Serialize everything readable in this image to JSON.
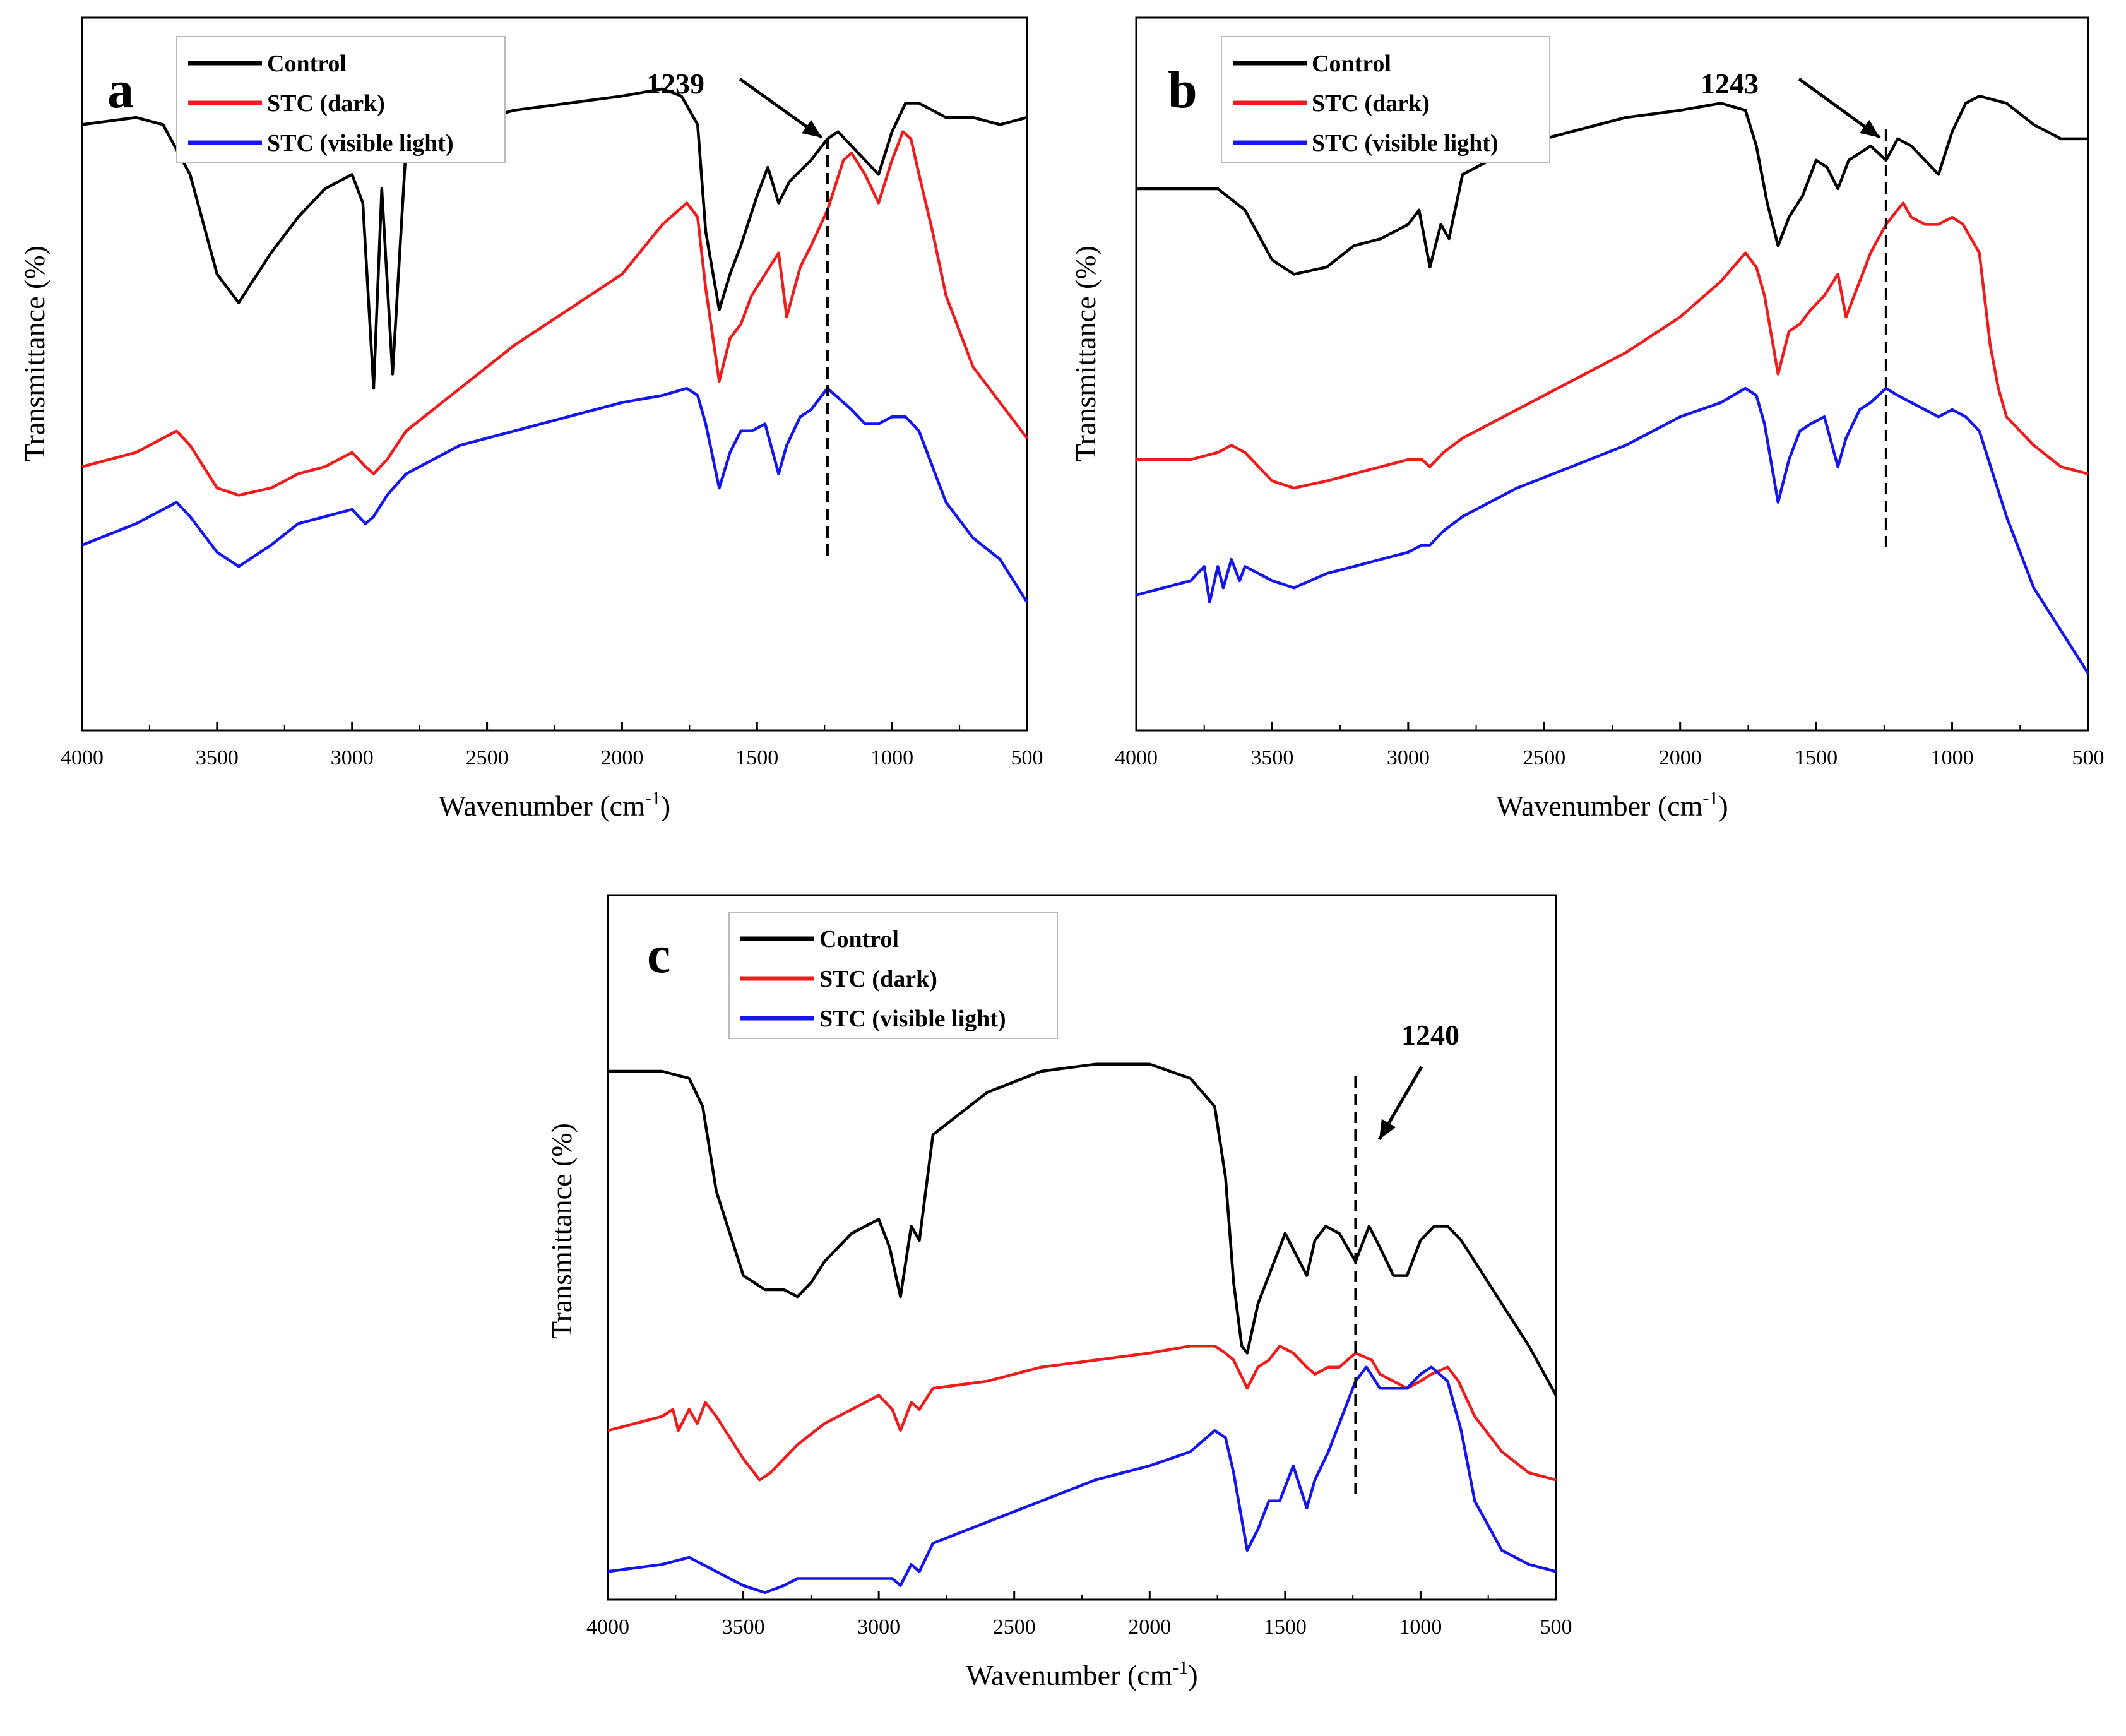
{
  "chart_data": [
    {
      "type": "line",
      "panel_label": "a",
      "xlabel": "Wavenumber (cm",
      "xlabel_sup": "-1",
      "xlabel_close": ")",
      "ylabel": "Transmittance (%)",
      "xlim": [
        4000,
        500
      ],
      "x_reversed": true,
      "yticks_shown": false,
      "x_ticks": [
        4000,
        3500,
        3000,
        2500,
        2000,
        1500,
        1000,
        500
      ],
      "legend": [
        "Control",
        "STC (dark)",
        "STC (visible light)"
      ],
      "legend_position": "top-left",
      "series_colors": [
        "#000000",
        "#ee1c1c",
        "#1515ee"
      ],
      "annotation": {
        "text": "1239",
        "x": 1239
      },
      "series": [
        {
          "name": "Control",
          "x": [
            4000,
            3800,
            3700,
            3600,
            3500,
            3420,
            3300,
            3200,
            3100,
            3000,
            2960,
            2920,
            2890,
            2850,
            2800,
            2600,
            2400,
            2200,
            2000,
            1850,
            1780,
            1720,
            1690,
            1640,
            1600,
            1560,
            1500,
            1460,
            1420,
            1380,
            1300,
            1239,
            1200,
            1150,
            1100,
            1050,
            1000,
            950,
            900,
            800,
            700,
            600,
            500
          ],
          "y": [
            85,
            86,
            85,
            78,
            64,
            60,
            67,
            72,
            76,
            78,
            74,
            48,
            76,
            50,
            82,
            85,
            87,
            88,
            89,
            90,
            89,
            85,
            70,
            59,
            64,
            68,
            75,
            79,
            74,
            77,
            80,
            83,
            84,
            82,
            80,
            78,
            84,
            88,
            88,
            86,
            86,
            85,
            86
          ]
        },
        {
          "name": "STC (dark)",
          "x": [
            4000,
            3800,
            3700,
            3650,
            3600,
            3500,
            3420,
            3300,
            3200,
            3100,
            3000,
            2950,
            2920,
            2870,
            2800,
            2600,
            2400,
            2200,
            2000,
            1850,
            1760,
            1720,
            1690,
            1640,
            1600,
            1560,
            1520,
            1470,
            1420,
            1390,
            1340,
            1300,
            1239,
            1180,
            1150,
            1100,
            1050,
            1000,
            960,
            930,
            900,
            850,
            800,
            700,
            600,
            500
          ],
          "y": [
            37,
            39,
            41,
            42,
            40,
            34,
            33,
            34,
            36,
            37,
            39,
            37,
            36,
            38,
            42,
            48,
            54,
            59,
            64,
            71,
            74,
            72,
            62,
            49,
            55,
            57,
            61,
            64,
            67,
            58,
            65,
            68,
            73,
            80,
            81,
            78,
            74,
            80,
            84,
            83,
            78,
            70,
            61,
            51,
            46,
            41
          ]
        },
        {
          "name": "STC (visible light)",
          "x": [
            4000,
            3800,
            3700,
            3650,
            3600,
            3500,
            3420,
            3300,
            3200,
            3100,
            3000,
            2950,
            2920,
            2870,
            2800,
            2600,
            2400,
            2200,
            2000,
            1850,
            1760,
            1720,
            1690,
            1640,
            1600,
            1560,
            1520,
            1470,
            1420,
            1390,
            1340,
            1300,
            1239,
            1150,
            1100,
            1050,
            1000,
            950,
            900,
            850,
            800,
            700,
            600,
            500
          ],
          "y": [
            26,
            29,
            31,
            32,
            30,
            25,
            23,
            26,
            29,
            30,
            31,
            29,
            30,
            33,
            36,
            40,
            42,
            44,
            46,
            47,
            48,
            47,
            43,
            34,
            39,
            42,
            42,
            43,
            36,
            40,
            44,
            45,
            48,
            45,
            43,
            43,
            44,
            44,
            42,
            37,
            32,
            27,
            24,
            18
          ]
        }
      ]
    },
    {
      "type": "line",
      "panel_label": "b",
      "xlabel": "Wavenumber (cm",
      "xlabel_sup": "-1",
      "xlabel_close": ")",
      "ylabel": "Transmittance (%)",
      "xlim": [
        4000,
        500
      ],
      "x_reversed": true,
      "yticks_shown": false,
      "x_ticks": [
        4000,
        3500,
        3000,
        2500,
        2000,
        1500,
        1000,
        500
      ],
      "legend": [
        "Control",
        "STC (dark)",
        "STC (visible light)"
      ],
      "legend_position": "top-left",
      "series_colors": [
        "#000000",
        "#ee1c1c",
        "#1515ee"
      ],
      "annotation": {
        "text": "1243",
        "x": 1243
      },
      "series": [
        {
          "name": "Control",
          "x": [
            4000,
            3700,
            3600,
            3500,
            3420,
            3300,
            3200,
            3100,
            3000,
            2960,
            2920,
            2880,
            2850,
            2800,
            2600,
            2400,
            2200,
            2000,
            1850,
            1760,
            1720,
            1680,
            1640,
            1600,
            1550,
            1500,
            1460,
            1420,
            1380,
            1300,
            1243,
            1200,
            1150,
            1100,
            1050,
            1000,
            950,
            900,
            800,
            700,
            600,
            500
          ],
          "y": [
            76,
            76,
            73,
            66,
            64,
            65,
            68,
            69,
            71,
            73,
            65,
            71,
            69,
            78,
            82,
            84,
            86,
            87,
            88,
            87,
            82,
            74,
            68,
            72,
            75,
            80,
            79,
            76,
            80,
            82,
            80,
            83,
            82,
            80,
            78,
            84,
            88,
            89,
            88,
            85,
            83,
            83
          ]
        },
        {
          "name": "STC (dark)",
          "x": [
            4000,
            3800,
            3700,
            3650,
            3600,
            3500,
            3420,
            3300,
            3200,
            3100,
            3000,
            2950,
            2920,
            2870,
            2800,
            2600,
            2400,
            2200,
            2000,
            1850,
            1760,
            1720,
            1690,
            1640,
            1600,
            1560,
            1520,
            1470,
            1420,
            1390,
            1340,
            1300,
            1243,
            1180,
            1150,
            1100,
            1050,
            1000,
            960,
            900,
            860,
            830,
            800,
            700,
            600,
            500
          ],
          "y": [
            38,
            38,
            39,
            40,
            39,
            35,
            34,
            35,
            36,
            37,
            38,
            38,
            37,
            39,
            41,
            45,
            49,
            53,
            58,
            63,
            67,
            65,
            61,
            50,
            56,
            57,
            59,
            61,
            64,
            58,
            63,
            67,
            71,
            74,
            72,
            71,
            71,
            72,
            71,
            67,
            54,
            48,
            44,
            40,
            37,
            36
          ]
        },
        {
          "name": "STC (visible light)",
          "x": [
            4000,
            3800,
            3750,
            3730,
            3700,
            3680,
            3650,
            3620,
            3600,
            3500,
            3420,
            3300,
            3200,
            3100,
            3000,
            2950,
            2920,
            2870,
            2800,
            2600,
            2400,
            2200,
            2000,
            1850,
            1760,
            1720,
            1690,
            1640,
            1600,
            1560,
            1520,
            1470,
            1420,
            1390,
            1340,
            1300,
            1243,
            1200,
            1150,
            1100,
            1050,
            1000,
            950,
            900,
            850,
            800,
            700,
            600,
            500
          ],
          "y": [
            19,
            21,
            23,
            18,
            23,
            20,
            24,
            21,
            23,
            21,
            20,
            22,
            23,
            24,
            25,
            26,
            26,
            28,
            30,
            34,
            37,
            40,
            44,
            46,
            48,
            47,
            43,
            32,
            38,
            42,
            43,
            44,
            37,
            41,
            45,
            46,
            48,
            47,
            46,
            45,
            44,
            45,
            44,
            42,
            36,
            30,
            20,
            14,
            8
          ]
        }
      ]
    },
    {
      "type": "line",
      "panel_label": "c",
      "xlabel": "Wavenumber (cm",
      "xlabel_sup": "-1",
      "xlabel_close": ")",
      "ylabel": "Transmittance (%)",
      "xlim": [
        4000,
        500
      ],
      "x_reversed": true,
      "yticks_shown": false,
      "x_ticks": [
        4000,
        3500,
        3000,
        2500,
        2000,
        1500,
        1000,
        500
      ],
      "legend": [
        "Control",
        "STC (dark)",
        "STC (visible light)"
      ],
      "legend_position": "top-left",
      "series_colors": [
        "#000000",
        "#ee1c1c",
        "#1515ee"
      ],
      "annotation": {
        "text": "1240",
        "x": 1240
      },
      "series": [
        {
          "name": "Control",
          "x": [
            4000,
            3800,
            3700,
            3650,
            3600,
            3500,
            3420,
            3350,
            3300,
            3250,
            3200,
            3100,
            3000,
            2960,
            2920,
            2880,
            2850,
            2800,
            2600,
            2400,
            2200,
            2000,
            1850,
            1760,
            1720,
            1690,
            1660,
            1640,
            1600,
            1560,
            1500,
            1460,
            1420,
            1390,
            1350,
            1300,
            1240,
            1190,
            1150,
            1100,
            1050,
            1000,
            950,
            900,
            850,
            800,
            700,
            600,
            500
          ],
          "y": [
            75,
            75,
            74,
            70,
            58,
            46,
            44,
            44,
            43,
            45,
            48,
            52,
            54,
            50,
            43,
            53,
            51,
            66,
            72,
            75,
            76,
            76,
            74,
            70,
            60,
            45,
            36,
            35,
            42,
            46,
            52,
            49,
            46,
            51,
            53,
            52,
            48,
            53,
            50,
            46,
            46,
            51,
            53,
            53,
            51,
            48,
            42,
            36,
            29
          ]
        },
        {
          "name": "STC (dark)",
          "x": [
            4000,
            3800,
            3760,
            3740,
            3700,
            3670,
            3640,
            3600,
            3500,
            3440,
            3400,
            3300,
            3200,
            3100,
            3000,
            2950,
            2920,
            2880,
            2850,
            2800,
            2600,
            2400,
            2200,
            2000,
            1850,
            1760,
            1720,
            1690,
            1640,
            1600,
            1560,
            1520,
            1470,
            1420,
            1390,
            1340,
            1300,
            1240,
            1180,
            1150,
            1100,
            1050,
            1000,
            960,
            900,
            860,
            800,
            700,
            600,
            500
          ],
          "y": [
            24,
            26,
            27,
            24,
            27,
            25,
            28,
            26,
            20,
            17,
            18,
            22,
            25,
            27,
            29,
            27,
            24,
            28,
            27,
            30,
            31,
            33,
            34,
            35,
            36,
            36,
            35,
            34,
            30,
            33,
            34,
            36,
            35,
            33,
            32,
            33,
            33,
            35,
            34,
            32,
            31,
            30,
            31,
            32,
            33,
            31,
            26,
            21,
            18,
            17
          ]
        },
        {
          "name": "STC (visible light)",
          "x": [
            4000,
            3800,
            3700,
            3650,
            3600,
            3500,
            3420,
            3350,
            3300,
            3200,
            3100,
            3000,
            2950,
            2920,
            2880,
            2850,
            2800,
            2600,
            2400,
            2200,
            2000,
            1850,
            1760,
            1720,
            1690,
            1640,
            1600,
            1560,
            1520,
            1470,
            1420,
            1390,
            1340,
            1300,
            1240,
            1200,
            1150,
            1100,
            1050,
            1000,
            960,
            900,
            850,
            800,
            700,
            600,
            500
          ],
          "y": [
            4,
            5,
            6,
            5,
            4,
            2,
            1,
            2,
            3,
            3,
            3,
            3,
            3,
            2,
            5,
            4,
            8,
            11,
            14,
            17,
            19,
            21,
            24,
            23,
            18,
            7,
            10,
            14,
            14,
            19,
            13,
            17,
            21,
            25,
            31,
            33,
            30,
            30,
            30,
            32,
            33,
            31,
            24,
            14,
            7,
            5,
            4
          ]
        }
      ]
    }
  ]
}
